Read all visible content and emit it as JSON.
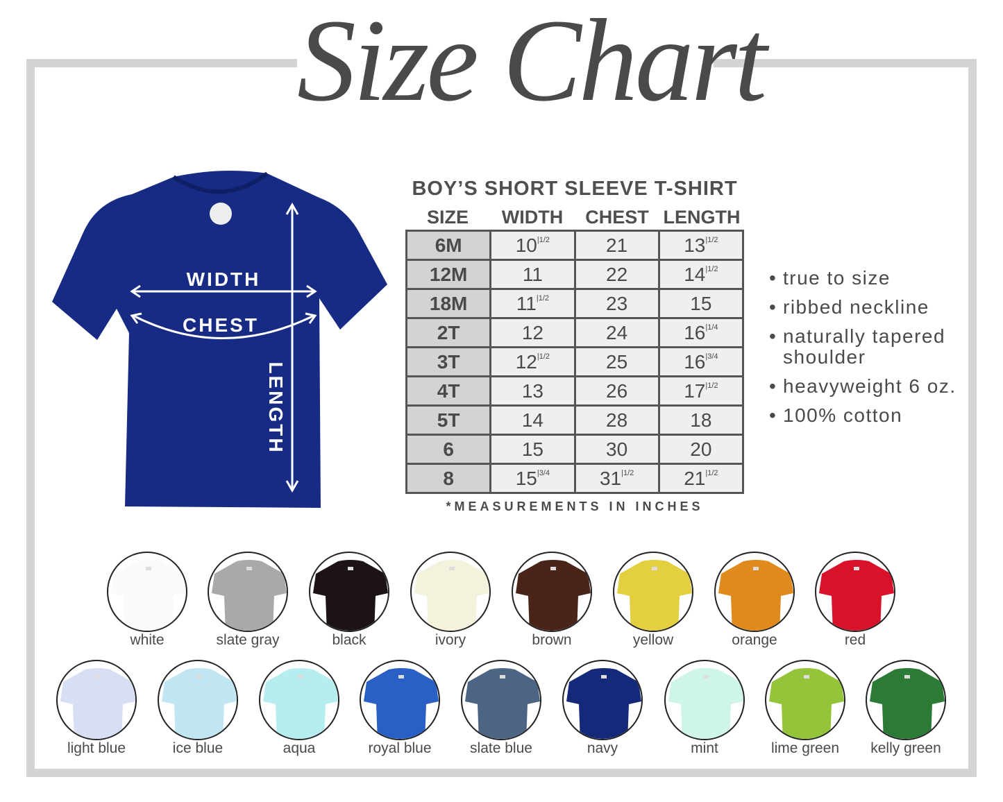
{
  "title": "Size Chart",
  "shirt": {
    "color": "#172b84",
    "labels": {
      "width": "WIDTH",
      "chest": "CHEST",
      "length": "LENGTH"
    }
  },
  "table": {
    "title": "BOY’S SHORT SLEEVE T-SHIRT",
    "headers": [
      "SIZE",
      "WIDTH",
      "CHEST",
      "LENGTH"
    ],
    "rows": [
      [
        "6M",
        "10|1/2",
        "21",
        "13|1/2"
      ],
      [
        "12M",
        "11",
        "22",
        "14|1/2"
      ],
      [
        "18M",
        "11|1/2",
        "23",
        "15"
      ],
      [
        "2T",
        "12",
        "24",
        "16|1/4"
      ],
      [
        "3T",
        "12|1/2",
        "25",
        "16|3/4"
      ],
      [
        "4T",
        "13",
        "26",
        "17|1/2"
      ],
      [
        "5T",
        "14",
        "28",
        "18"
      ],
      [
        "6",
        "15",
        "30",
        "20"
      ],
      [
        "8",
        "15|3/4",
        "31|1/2",
        "21|1/2"
      ]
    ],
    "note": "*MEASUREMENTS IN INCHES"
  },
  "features": [
    "true to size",
    "ribbed neckline",
    "naturally tapered shoulder",
    "heavyweight 6 oz.",
    "100% cotton"
  ],
  "colors": [
    [
      {
        "name": "white",
        "hex": "#fafafa"
      },
      {
        "name": "slate gray",
        "hex": "#a9a9ac"
      },
      {
        "name": "black",
        "hex": "#1c1414"
      },
      {
        "name": "ivory",
        "hex": "#f4f2dc"
      },
      {
        "name": "brown",
        "hex": "#4a2418"
      },
      {
        "name": "yellow",
        "hex": "#e3cf40"
      },
      {
        "name": "orange",
        "hex": "#e08a1e"
      },
      {
        "name": "red",
        "hex": "#d91229"
      }
    ],
    [
      {
        "name": "light blue",
        "hex": "#d8def4"
      },
      {
        "name": "ice blue",
        "hex": "#c0e6f3"
      },
      {
        "name": "aqua",
        "hex": "#b6eef0"
      },
      {
        "name": "royal blue",
        "hex": "#2a5fc5"
      },
      {
        "name": "slate blue",
        "hex": "#4d6584"
      },
      {
        "name": "navy",
        "hex": "#14297a"
      },
      {
        "name": "mint",
        "hex": "#cff4ea"
      },
      {
        "name": "lime green",
        "hex": "#93c43a"
      },
      {
        "name": "kelly green",
        "hex": "#2b7a35"
      }
    ]
  ]
}
